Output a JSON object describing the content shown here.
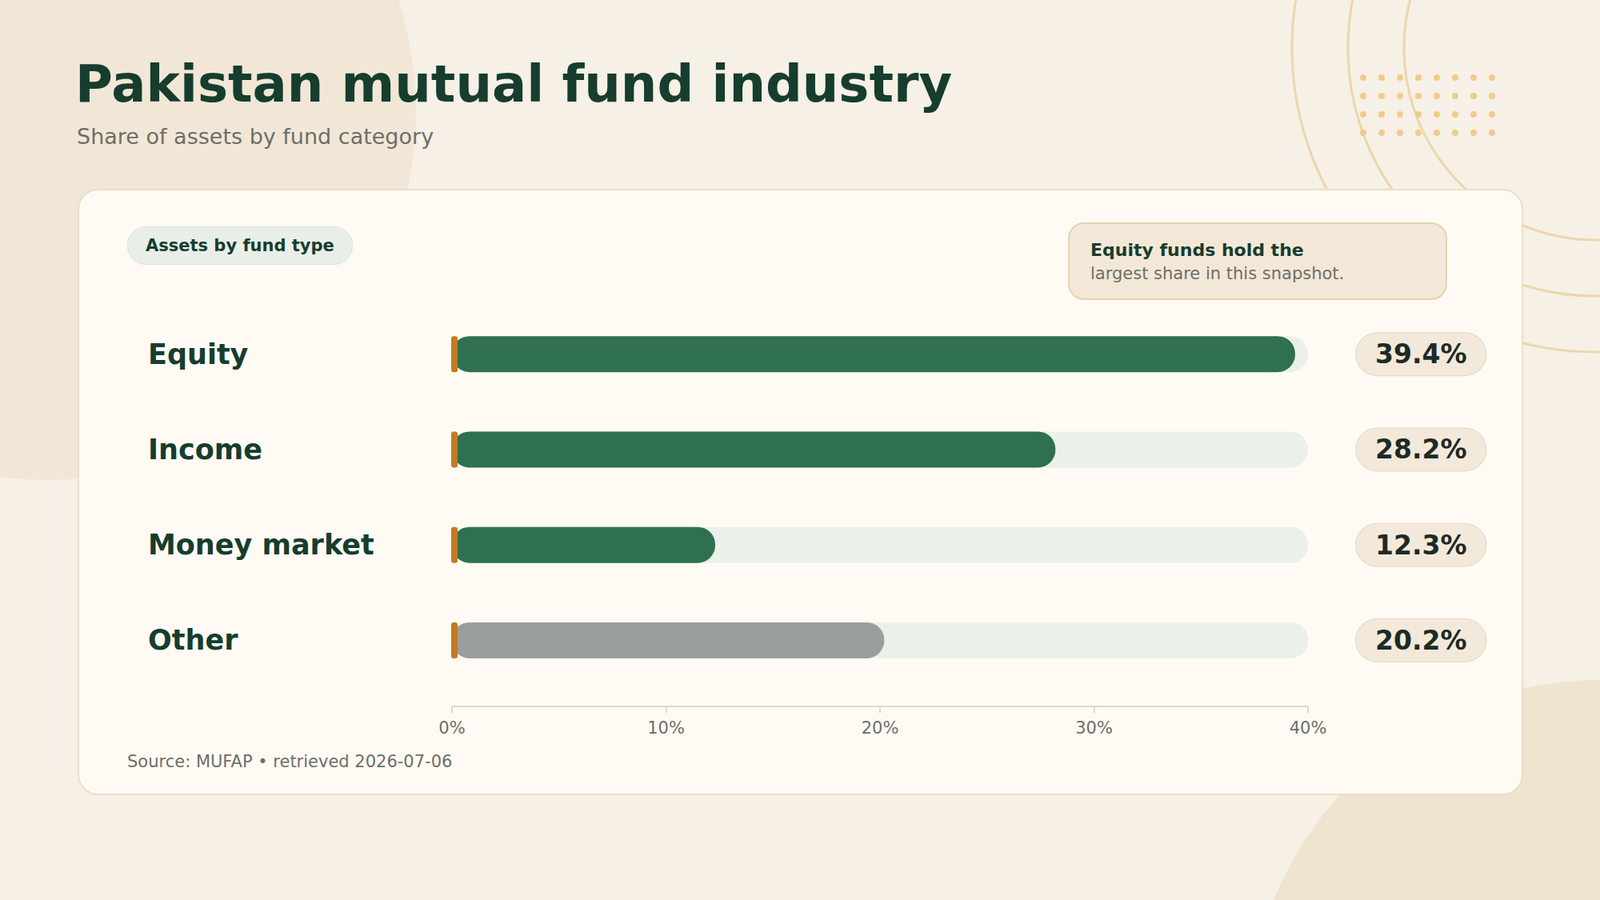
{
  "chart_data": {
    "type": "bar",
    "orientation": "horizontal",
    "title": "Pakistan mutual fund industry",
    "subtitle": "Share of assets by fund category",
    "panel_title": "Assets by fund type",
    "annotations": [
      "Equity funds hold the",
      "largest share in this snapshot."
    ],
    "source": "Source: MUFAP • retrieved 2026-07-06",
    "categories": [
      "Equity",
      "Income",
      "Money market",
      "Other"
    ],
    "values": [
      39.4,
      28.2,
      12.3,
      20.2
    ],
    "value_labels": [
      "39.4%",
      "28.2%",
      "12.3%",
      "20.2%"
    ],
    "colors": [
      "#2e7050",
      "#2e7050",
      "#2e7050",
      "#9b9f9b"
    ],
    "data_labels": true,
    "xlim": [
      0,
      40
    ],
    "xticks": [
      {
        "value": 0,
        "label": "0%"
      },
      {
        "value": 10,
        "label": "10%"
      },
      {
        "value": 20,
        "label": "20%"
      },
      {
        "value": 30,
        "label": "30%"
      },
      {
        "value": 40,
        "label": "40%"
      }
    ],
    "grid": false
  }
}
